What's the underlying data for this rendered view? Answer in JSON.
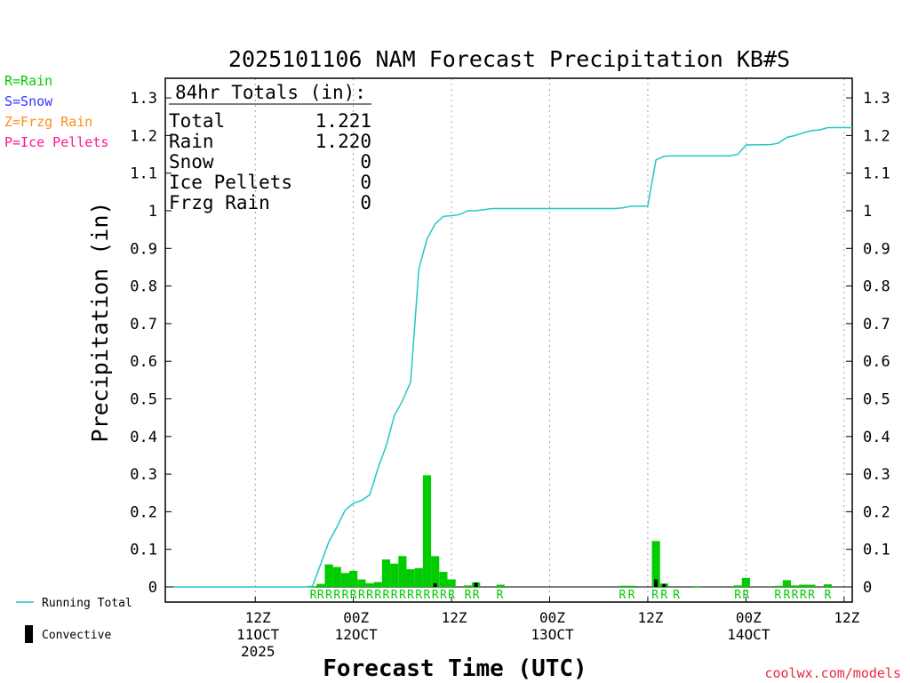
{
  "chart_data": {
    "type": "bar",
    "title": "2025101106 NAM Forecast Precipitation KB#S",
    "xlabel": "Forecast Time (UTC)",
    "ylabel": "Precipitation (in)",
    "ylim": [
      0,
      1.35
    ],
    "xlim_hours": [
      -5,
      79
    ],
    "y_ticks": [
      0,
      0.1,
      0.2,
      0.3,
      0.4,
      0.5,
      0.6,
      0.7,
      0.8,
      0.9,
      1,
      1.1,
      1.2,
      1.3
    ],
    "y_tick_labels": [
      "0",
      "0.1",
      "0.2",
      "0.3",
      "0.4",
      "0.5",
      "0.6",
      "0.7",
      "0.8",
      "0.9",
      "1",
      "1.1",
      "1.2",
      "1.3"
    ],
    "x_ticks": [
      {
        "hour": 6,
        "lines": [
          "12Z",
          "11OCT",
          "2025"
        ]
      },
      {
        "hour": 18,
        "lines": [
          "00Z",
          "12OCT"
        ]
      },
      {
        "hour": 30,
        "lines": [
          "12Z"
        ]
      },
      {
        "hour": 42,
        "lines": [
          "00Z",
          "13OCT"
        ]
      },
      {
        "hour": 54,
        "lines": [
          "12Z"
        ]
      },
      {
        "hour": 66,
        "lines": [
          "00Z",
          "14OCT"
        ]
      },
      {
        "hour": 78,
        "lines": [
          "12Z"
        ]
      }
    ],
    "legend_types": [
      {
        "label": "R=Rain",
        "color": "#00cc00"
      },
      {
        "label": "S=Snow",
        "color": "#3333ff"
      },
      {
        "label": "Z=Frzg Rain",
        "color": "#ff8c1a"
      },
      {
        "label": "P=Ice Pellets",
        "color": "#ff1493"
      }
    ],
    "legend_lines": [
      {
        "label": "Running Total",
        "color": "#20c8c8"
      },
      {
        "label": "Convective",
        "color": "#000000"
      }
    ],
    "totals_box": {
      "heading": "84hr Totals (in):",
      "rows": [
        {
          "label": "Total",
          "value": "1.221"
        },
        {
          "label": "Rain",
          "value": "1.220"
        },
        {
          "label": "Snow",
          "value": "0"
        },
        {
          "label": "Ice Pellets",
          "value": "0"
        },
        {
          "label": "Frzg Rain",
          "value": "0"
        }
      ]
    },
    "series": [
      {
        "name": "Hourly Precipitation",
        "color": "#00cc00",
        "hours": [
          13,
          14,
          15,
          16,
          17,
          18,
          19,
          20,
          21,
          22,
          23,
          24,
          25,
          26,
          27,
          28,
          29,
          30,
          32,
          33,
          36,
          51,
          52,
          55,
          56,
          60,
          65,
          66,
          70,
          71,
          72,
          73,
          74,
          76
        ],
        "values": [
          0.002,
          0.008,
          0.06,
          0.053,
          0.037,
          0.043,
          0.02,
          0.01,
          0.013,
          0.073,
          0.062,
          0.082,
          0.047,
          0.05,
          0.297,
          0.082,
          0.04,
          0.02,
          0.004,
          0.012,
          0.006,
          0.003,
          0.003,
          0.122,
          0.009,
          0.002,
          0.004,
          0.024,
          0.003,
          0.018,
          0.004,
          0.006,
          0.006,
          0.007
        ]
      },
      {
        "name": "Convective",
        "color": "#000000",
        "hours": [
          28,
          33,
          55,
          56
        ],
        "values": [
          0.01,
          0.012,
          0.02,
          0.008
        ]
      },
      {
        "name": "Running Total",
        "color": "#20c8c8",
        "hours": [
          -4,
          12,
          13,
          14,
          15,
          16,
          17,
          18,
          19,
          20,
          21,
          22,
          23,
          24,
          25,
          26,
          27,
          28,
          29,
          30,
          31,
          32,
          33,
          34,
          35,
          36,
          37,
          50,
          51,
          52,
          54,
          55,
          56,
          57,
          58,
          60,
          64,
          65,
          66,
          69,
          70,
          71,
          72,
          73,
          74,
          75,
          76,
          79
        ],
        "values": [
          0,
          0,
          0.002,
          0.06,
          0.12,
          0.16,
          0.205,
          0.222,
          0.23,
          0.245,
          0.315,
          0.375,
          0.455,
          0.495,
          0.545,
          0.845,
          0.925,
          0.965,
          0.985,
          0.987,
          0.99,
          1.0,
          1.0,
          1.003,
          1.006,
          1.006,
          1.006,
          1.006,
          1.008,
          1.012,
          1.012,
          1.135,
          1.145,
          1.146,
          1.146,
          1.146,
          1.146,
          1.15,
          1.175,
          1.176,
          1.18,
          1.195,
          1.2,
          1.207,
          1.213,
          1.215,
          1.221,
          1.221
        ]
      }
    ],
    "ptype_markers": [
      {
        "hour": 13.1,
        "text": "R"
      },
      {
        "hour": 14,
        "text": "R"
      },
      {
        "hour": 15,
        "text": "R"
      },
      {
        "hour": 16,
        "text": "R"
      },
      {
        "hour": 17,
        "text": "R"
      },
      {
        "hour": 18,
        "text": "R"
      },
      {
        "hour": 19,
        "text": "R"
      },
      {
        "hour": 20,
        "text": "R"
      },
      {
        "hour": 21,
        "text": "R"
      },
      {
        "hour": 22,
        "text": "R"
      },
      {
        "hour": 23,
        "text": "R"
      },
      {
        "hour": 24,
        "text": "R"
      },
      {
        "hour": 25,
        "text": "R"
      },
      {
        "hour": 26,
        "text": "R"
      },
      {
        "hour": 27,
        "text": "R"
      },
      {
        "hour": 28,
        "text": "R"
      },
      {
        "hour": 29,
        "text": "R"
      },
      {
        "hour": 30,
        "text": "R"
      },
      {
        "hour": 32,
        "text": "R"
      },
      {
        "hour": 33,
        "text": "R"
      },
      {
        "hour": 35.9,
        "text": "R"
      },
      {
        "hour": 50.9,
        "text": "R"
      },
      {
        "hour": 52,
        "text": "R"
      },
      {
        "hour": 54.9,
        "text": "R"
      },
      {
        "hour": 56,
        "text": "R"
      },
      {
        "hour": 57.5,
        "text": "R"
      },
      {
        "hour": 65,
        "text": "R"
      },
      {
        "hour": 66,
        "text": "R"
      },
      {
        "hour": 69.9,
        "text": "R"
      },
      {
        "hour": 71,
        "text": "R"
      },
      {
        "hour": 72,
        "text": "R"
      },
      {
        "hour": 73,
        "text": "R"
      },
      {
        "hour": 74,
        "text": "R"
      },
      {
        "hour": 76,
        "text": "R"
      }
    ],
    "credit": "coolwx.com/models"
  }
}
